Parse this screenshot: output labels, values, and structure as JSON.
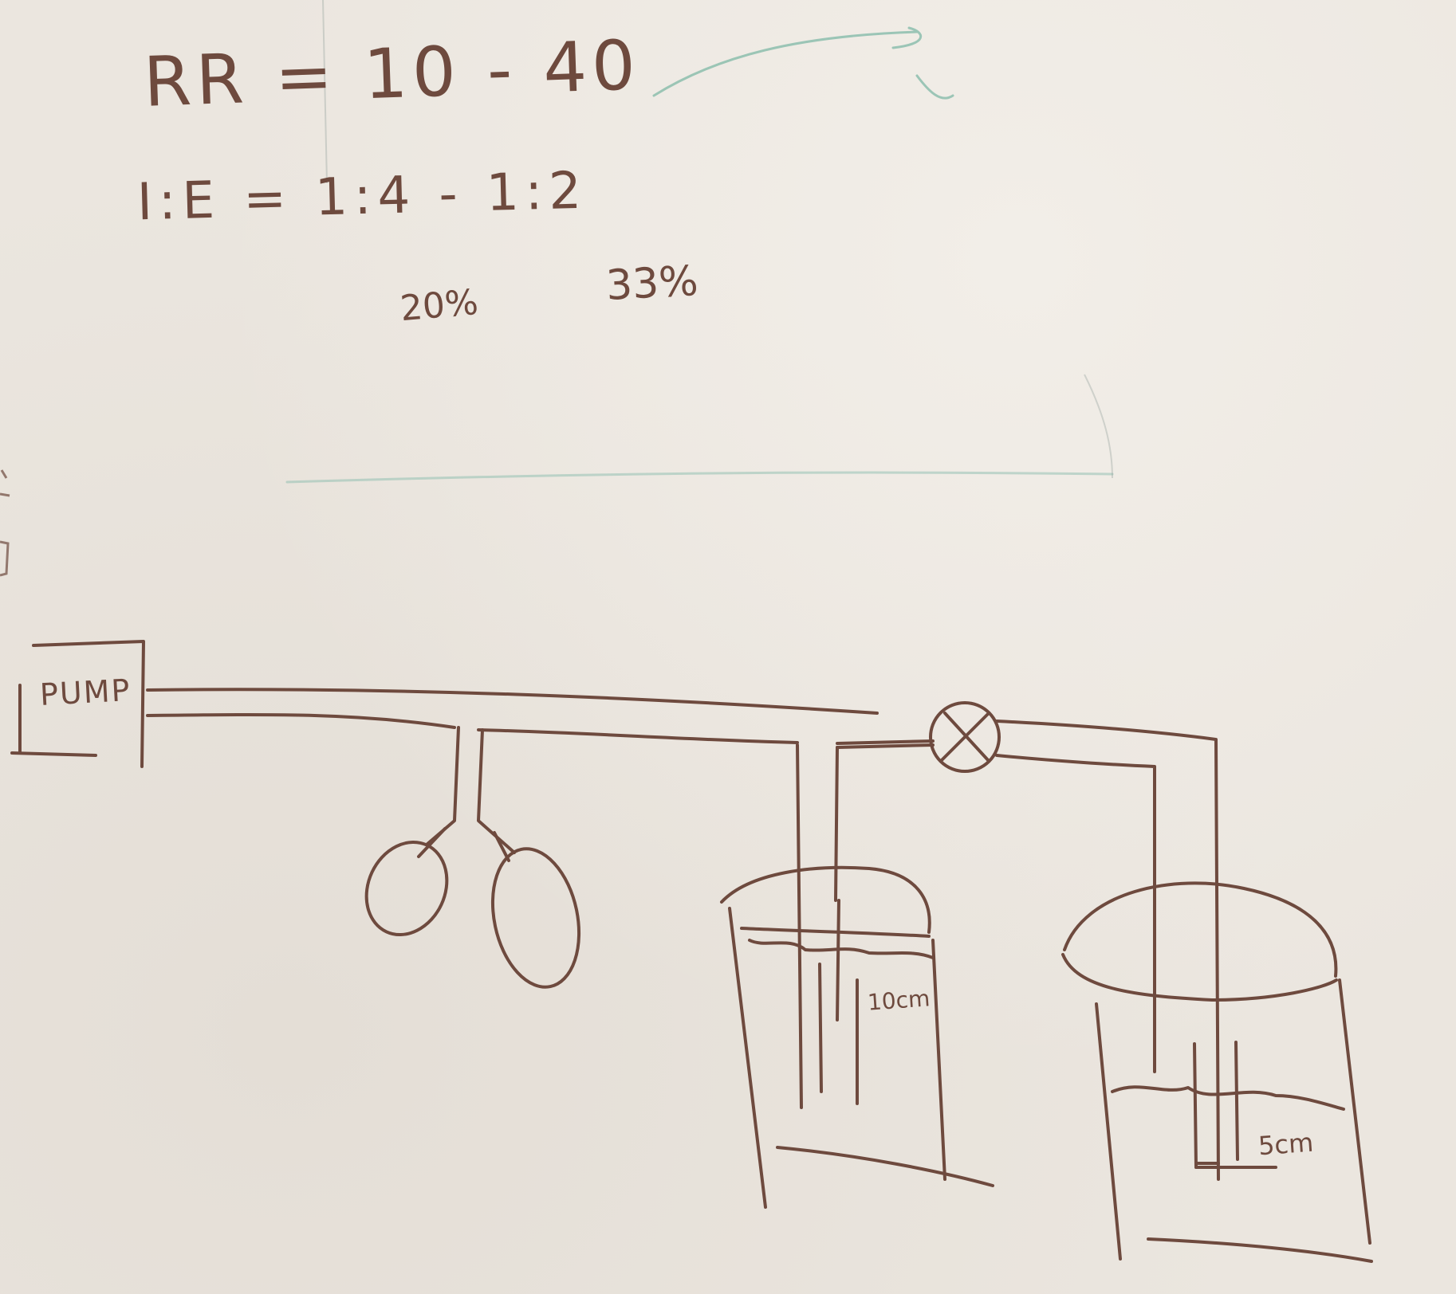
{
  "formulas": {
    "rr": "RR = 10 - 40",
    "ie": "I:E = 1:4 - 1:2",
    "pct_low": "20%",
    "pct_high": "33%"
  },
  "diagram": {
    "pump_label": "PUMP",
    "depth_left": "10cm",
    "depth_right": "5cm"
  },
  "colors": {
    "board": "#ebe6df",
    "marker_brown": "#6e4a3e",
    "marker_teal": "#7fb8a6"
  }
}
